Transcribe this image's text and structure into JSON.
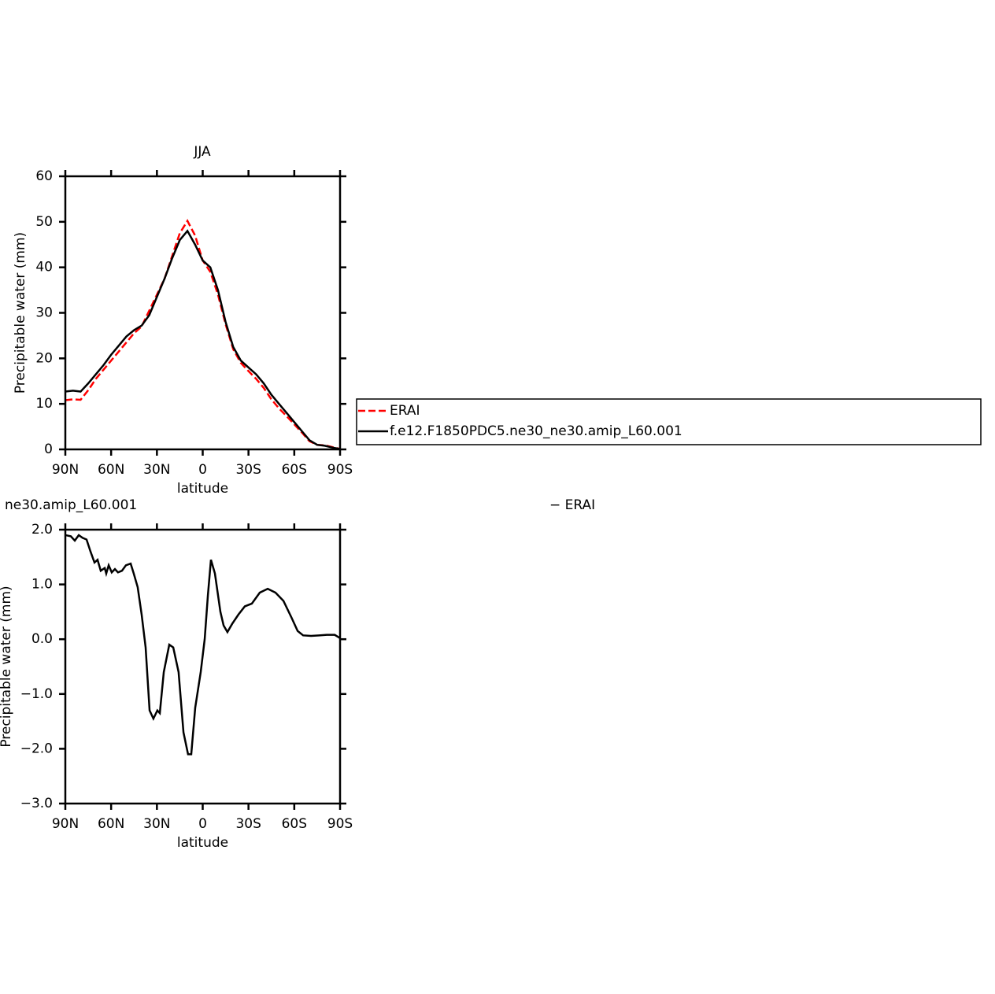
{
  "chart_data": [
    {
      "type": "line",
      "title": "JJA",
      "xlabel": "latitude",
      "ylabel": "Precipitable water (mm)",
      "x": [
        90,
        85,
        80,
        75,
        70,
        65,
        60,
        55,
        50,
        45,
        40,
        35,
        30,
        25,
        20,
        15,
        10,
        5,
        0,
        -5,
        -10,
        -15,
        -20,
        -25,
        -30,
        -35,
        -40,
        -45,
        -50,
        -55,
        -60,
        -65,
        -70,
        -75,
        -80,
        -85,
        -90
      ],
      "xlim": [
        90,
        -90
      ],
      "xticks": [
        {
          "value": 90,
          "label": "90N"
        },
        {
          "value": 60,
          "label": "60N"
        },
        {
          "value": 30,
          "label": "30N"
        },
        0,
        {
          "value": -30,
          "label": "30S"
        },
        {
          "value": -60,
          "label": "60S"
        },
        {
          "value": -90,
          "label": "90S"
        }
      ],
      "ylim": [
        0,
        60
      ],
      "yticks": [
        0,
        10,
        20,
        30,
        40,
        50,
        60
      ],
      "legend": "right",
      "series": [
        {
          "name": "ERAI",
          "color": "#ff0000",
          "dash": true,
          "values": [
            10.8,
            11,
            10.9,
            13,
            15.5,
            17.5,
            19.5,
            21.5,
            23.5,
            25.5,
            27,
            30.5,
            34,
            37.5,
            42.5,
            47.5,
            50.2,
            47,
            41.5,
            39,
            34,
            27.5,
            22,
            19,
            17.2,
            15.5,
            13.5,
            11,
            9,
            7.3,
            5.5,
            3.7,
            1.8,
            1,
            0.9,
            0.5,
            0.1
          ]
        },
        {
          "name": "f.e12.F1850PDC5.ne30_ne30.amip_L60.001",
          "color": "#000000",
          "dash": false,
          "values": [
            12.7,
            12.9,
            12.7,
            14.5,
            16.5,
            18.5,
            20.8,
            22.8,
            24.8,
            26.2,
            27.2,
            29.5,
            33.5,
            37.5,
            42,
            46,
            48,
            45,
            41.5,
            40,
            35,
            28,
            22.5,
            19.5,
            18,
            16.5,
            14.5,
            12,
            10,
            8,
            6,
            4,
            2,
            1,
            0.8,
            0.4,
            0.1
          ]
        }
      ]
    },
    {
      "type": "line",
      "title": "ne30.amip_L60.001",
      "title_right": "− ERAI",
      "xlabel": "latitude",
      "ylabel": "Precipitable water (mm)",
      "x": [
        90,
        86.4,
        83.8,
        81.2,
        78.7,
        76.1,
        73.5,
        70.9,
        68.9,
        66.8,
        64.2,
        63.2,
        61.6,
        59.6,
        57.5,
        55.5,
        52.9,
        50.3,
        47.2,
        45.2,
        42.6,
        40,
        37.4,
        34.8,
        32.3,
        29.7,
        28.1,
        25.5,
        21.9,
        19.3,
        15.8,
        12.6,
        9.6,
        7.5,
        4.9,
        1.3,
        -1.3,
        -3.4,
        -5.4,
        -8,
        -11.6,
        -13.7,
        -16.2,
        -19.3,
        -23.4,
        -27.6,
        -32.2,
        -37.4,
        -42.6,
        -47.7,
        -52.9,
        -58.1,
        -62.2,
        -65.8,
        -71,
        -76.2,
        -81.3,
        -86.5,
        -90
      ],
      "xlim": [
        90,
        -90
      ],
      "xticks": [
        {
          "value": 90,
          "label": "90N"
        },
        {
          "value": 60,
          "label": "60N"
        },
        {
          "value": 30,
          "label": "30N"
        },
        0,
        {
          "value": -30,
          "label": "30S"
        },
        {
          "value": -60,
          "label": "60S"
        },
        {
          "value": -90,
          "label": "90S"
        }
      ],
      "ylim": [
        -3,
        2
      ],
      "yticks": [
        {
          "value": 2,
          "label": "2.0"
        },
        {
          "value": 1,
          "label": "1.0"
        },
        {
          "value": 0,
          "label": "0.0"
        },
        {
          "value": -1,
          "label": "−1.0"
        },
        {
          "value": -2,
          "label": "−2.0"
        },
        {
          "value": -3,
          "label": "−3.0"
        }
      ],
      "series": [
        {
          "color": "#000000",
          "dash": false,
          "values": [
            1.9,
            1.88,
            1.8,
            1.9,
            1.85,
            1.82,
            1.6,
            1.4,
            1.45,
            1.25,
            1.3,
            1.2,
            1.35,
            1.22,
            1.28,
            1.22,
            1.25,
            1.35,
            1.38,
            1.2,
            0.95,
            0.45,
            -0.15,
            -1.3,
            -1.45,
            -1.3,
            -1.35,
            -0.6,
            -0.1,
            -0.15,
            -0.6,
            -1.7,
            -2.1,
            -2.1,
            -1.25,
            -0.6,
            0,
            0.8,
            1.45,
            1.2,
            0.5,
            0.25,
            0.13,
            0.28,
            0.45,
            0.6,
            0.65,
            0.85,
            0.92,
            0.85,
            0.7,
            0.4,
            0.15,
            0.07,
            0.06,
            0.07,
            0.08,
            0.08,
            0.02
          ]
        }
      ]
    }
  ]
}
